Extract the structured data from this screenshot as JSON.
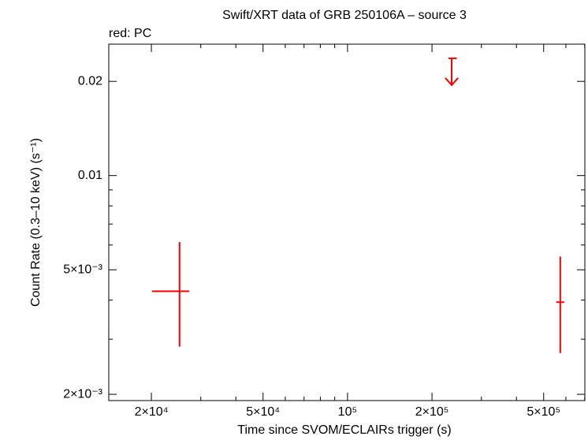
{
  "chart_data": {
    "type": "scatter",
    "title": "Swift/XRT data of GRB 250106A – source 3",
    "subtitle": "red: PC",
    "x_label": "Time since SVOM/ECLAIRs trigger (s)",
    "y_label": "Count Rate (0.3–10 keV) (s⁻¹)",
    "xscale": "log",
    "yscale": "log",
    "xlim": [
      14100,
      701000
    ],
    "ylim": [
      0.00191,
      0.0263
    ],
    "xticks": [
      {
        "value": 20000,
        "label": "2×10⁴"
      },
      {
        "value": 50000,
        "label": "5×10⁴"
      },
      {
        "value": 100000,
        "label": "10⁵"
      },
      {
        "value": 200000,
        "label": "2×10⁵"
      },
      {
        "value": 500000,
        "label": "5×10⁵"
      }
    ],
    "xminorticks": [
      30000,
      40000,
      60000,
      70000,
      80000,
      90000,
      300000,
      400000,
      600000,
      700000
    ],
    "yticks": [
      {
        "value": 0.002,
        "label": "2×10⁻³"
      },
      {
        "value": 0.005,
        "label": "5×10⁻³"
      },
      0.01,
      0.02
    ],
    "yminorticks": [
      0.003,
      0.004,
      0.006,
      0.007,
      0.008,
      0.009
    ],
    "series": [
      {
        "color": "#ff0000",
        "x": [
          25200,
          235000,
          573000
        ],
        "values": [
          0.00427,
          0.0237,
          0.00394
        ],
        "x_lo": [
          20100,
          229000,
          554000
        ],
        "x_hi": [
          27300,
          245000,
          592000
        ],
        "y_lo": [
          0.00284,
          null,
          0.00271
        ],
        "y_hi": [
          0.00613,
          null,
          0.00551
        ],
        "upper_limit": [
          false,
          true,
          false
        ]
      }
    ]
  }
}
